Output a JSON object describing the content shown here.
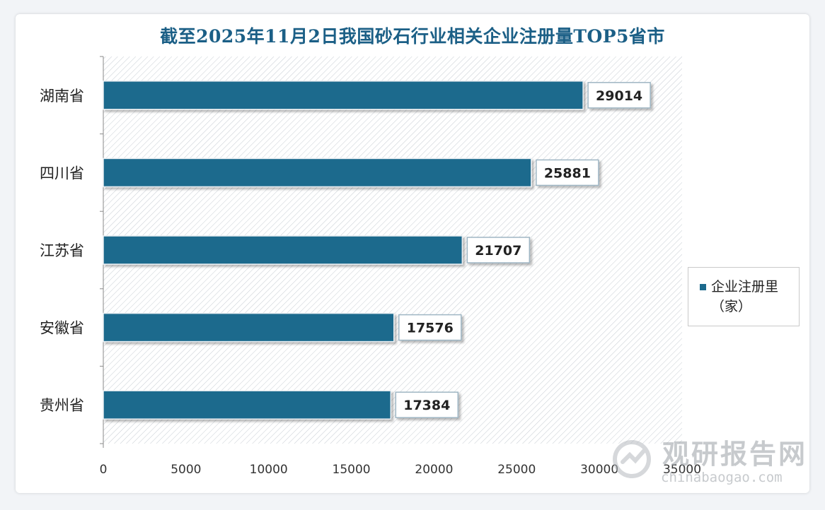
{
  "chart_data": {
    "type": "bar",
    "orientation": "horizontal",
    "title": "截至2025年11月2日我国砂石行业相关企业注册量TOP5省市",
    "categories": [
      "湖南省",
      "四川省",
      "江苏省",
      "安徽省",
      "贵州省"
    ],
    "series": [
      {
        "name": "企业注册里（家）",
        "values": [
          29014,
          25881,
          21707,
          17576,
          17384
        ]
      }
    ],
    "data_labels": [
      "29014",
      "25881",
      "21707",
      "17576",
      "17384"
    ],
    "xlim": [
      0,
      35000
    ],
    "x_ticks": [
      "0",
      "5000",
      "10000",
      "15000",
      "20000",
      "25000",
      "30000",
      "35000"
    ],
    "grid": false,
    "legend_position": "right",
    "bar_color": "#1c6a8d"
  },
  "legend": {
    "line1": "企业注册里",
    "line2": "（家）"
  },
  "watermark": {
    "brand": "观研报告网",
    "url": "chinabaogao.com"
  },
  "colors": {
    "title": "#1b5f86",
    "bar": "#1c6a8d",
    "hatch": "#c7cdd3"
  }
}
